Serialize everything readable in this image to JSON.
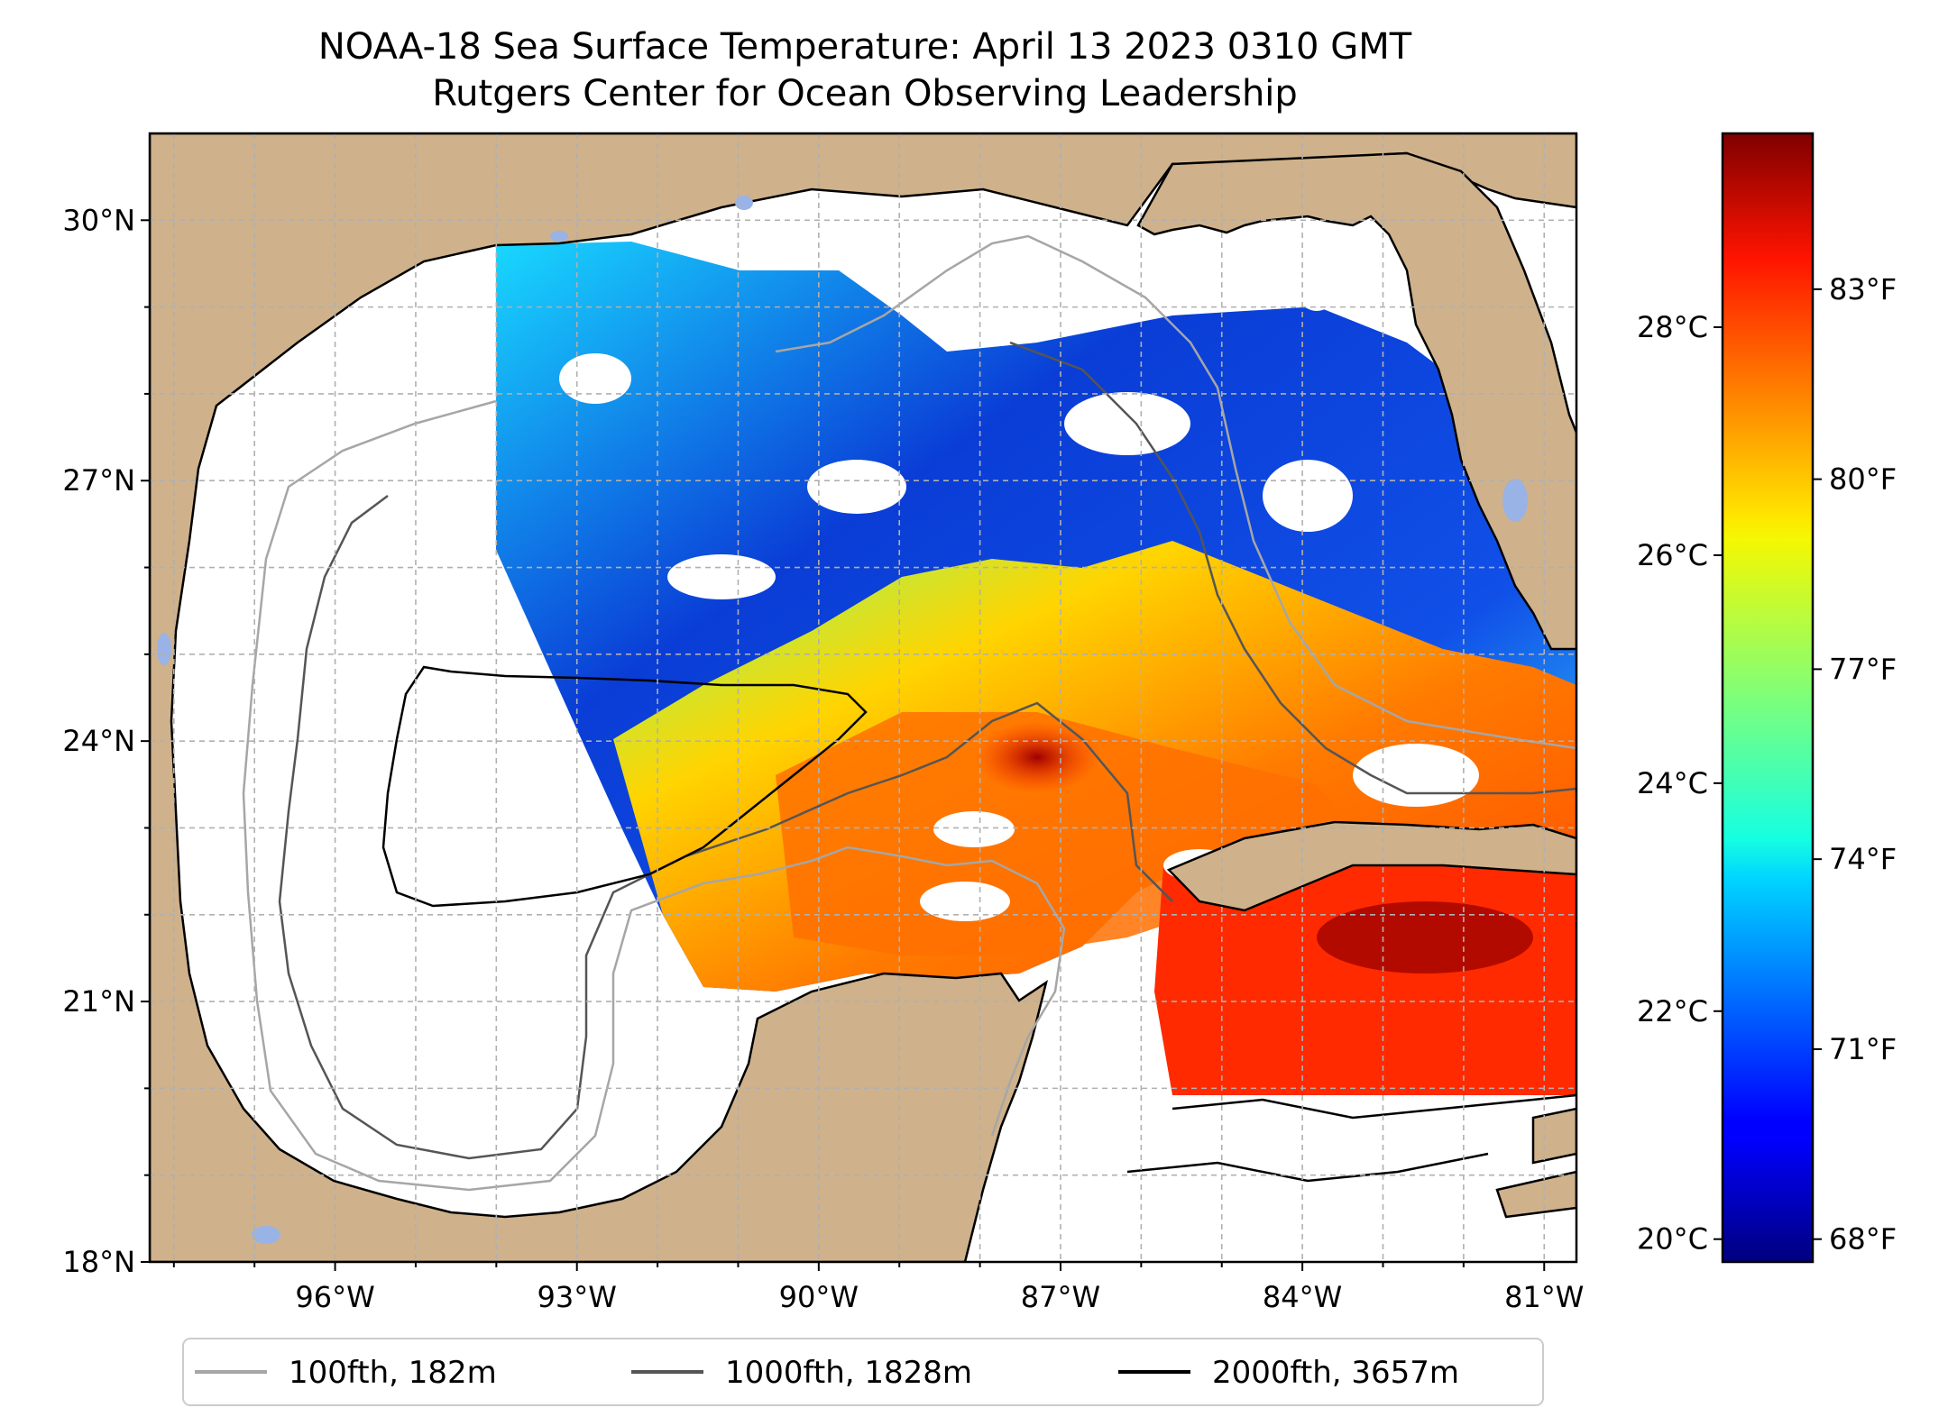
{
  "title": "NOAA-18 Sea Surface Temperature: April 13 2023 0310 GMT",
  "subtitle": "Rutgers Center for Ocean Observing Leadership",
  "map": {
    "extent": {
      "lon": [
        -98.3,
        -80.6
      ],
      "lat": [
        18.0,
        31.0
      ]
    },
    "lat_ticks": [
      {
        "value": 30,
        "label": "30°N"
      },
      {
        "value": 27,
        "label": "27°N"
      },
      {
        "value": 24,
        "label": "24°N"
      },
      {
        "value": 21,
        "label": "21°N"
      },
      {
        "value": 18,
        "label": "18°N"
      }
    ],
    "lon_ticks": [
      {
        "value": -96,
        "label": "96°W"
      },
      {
        "value": -93,
        "label": "93°W"
      },
      {
        "value": -90,
        "label": "90°W"
      },
      {
        "value": -87,
        "label": "87°W"
      },
      {
        "value": -84,
        "label": "84°W"
      },
      {
        "value": -81,
        "label": "81°W"
      }
    ],
    "gridlines": true,
    "land_color": "#cfb28b",
    "water_color": "#ffffff",
    "lake_color": "#99b3e6"
  },
  "colorbar": {
    "colormap": "jet",
    "range_c": [
      19.8,
      29.7
    ],
    "celsius_ticks": [
      {
        "value": 28,
        "label": "28°C"
      },
      {
        "value": 26,
        "label": "26°C"
      },
      {
        "value": 24,
        "label": "24°C"
      },
      {
        "value": 22,
        "label": "22°C"
      },
      {
        "value": 20,
        "label": "20°C"
      }
    ],
    "fahrenheit_ticks": [
      {
        "value": 83,
        "label": "83°F"
      },
      {
        "value": 80,
        "label": "80°F"
      },
      {
        "value": 77,
        "label": "77°F"
      },
      {
        "value": 74,
        "label": "74°F"
      },
      {
        "value": 71,
        "label": "71°F"
      },
      {
        "value": 68,
        "label": "68°F"
      }
    ]
  },
  "legend": {
    "placement": "bottom",
    "items": [
      {
        "label": "100fth, 182m",
        "color": "#a6a6a6"
      },
      {
        "label": "1000fth, 1828m",
        "color": "#555555"
      },
      {
        "label": "2000fth, 3657m",
        "color": "#000000"
      }
    ]
  }
}
